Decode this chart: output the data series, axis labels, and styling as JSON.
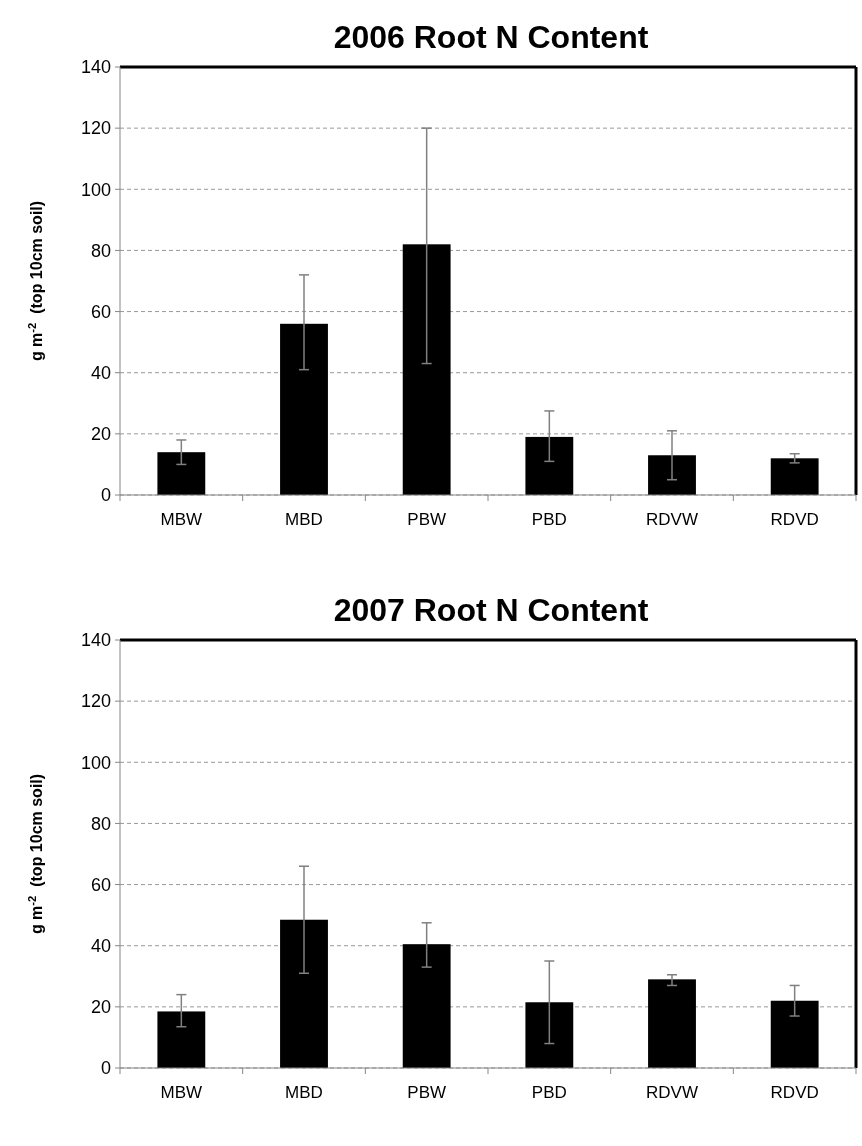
{
  "chart_data": [
    {
      "type": "bar",
      "title": "2006 Root N Content",
      "ylabel": "g m$^{-2}$  (top 10cm soil)",
      "categories": [
        "MBW",
        "MBD",
        "PBW",
        "PBD",
        "RDVW",
        "RDVD"
      ],
      "values": [
        14,
        56,
        82,
        19,
        13,
        12
      ],
      "errors": [
        [
          10,
          18
        ],
        [
          41,
          72
        ],
        [
          43,
          120
        ],
        [
          11,
          27.5
        ],
        [
          5,
          21
        ],
        [
          10.5,
          13.5
        ]
      ],
      "color": "#000000",
      "ylim": [
        0,
        140
      ],
      "yticks": [
        0,
        20,
        40,
        60,
        80,
        100,
        120,
        140
      ],
      "grid": "y"
    },
    {
      "type": "bar",
      "title": "2007 Root N Content",
      "ylabel": "g m$^{-2}$  (top 10cm soil)",
      "categories": [
        "MBW",
        "MBD",
        "PBW",
        "PBD",
        "RDVW",
        "RDVD"
      ],
      "values": [
        18.5,
        48.5,
        40.5,
        21.5,
        29,
        22
      ],
      "errors": [
        [
          13.5,
          24
        ],
        [
          31,
          66
        ],
        [
          33,
          47.5
        ],
        [
          8,
          35
        ],
        [
          27,
          30.5
        ],
        [
          17,
          27
        ]
      ],
      "color": "#000000",
      "ylim": [
        0,
        140
      ],
      "yticks": [
        0,
        20,
        40,
        60,
        80,
        100,
        120,
        140
      ],
      "grid": "y"
    }
  ]
}
